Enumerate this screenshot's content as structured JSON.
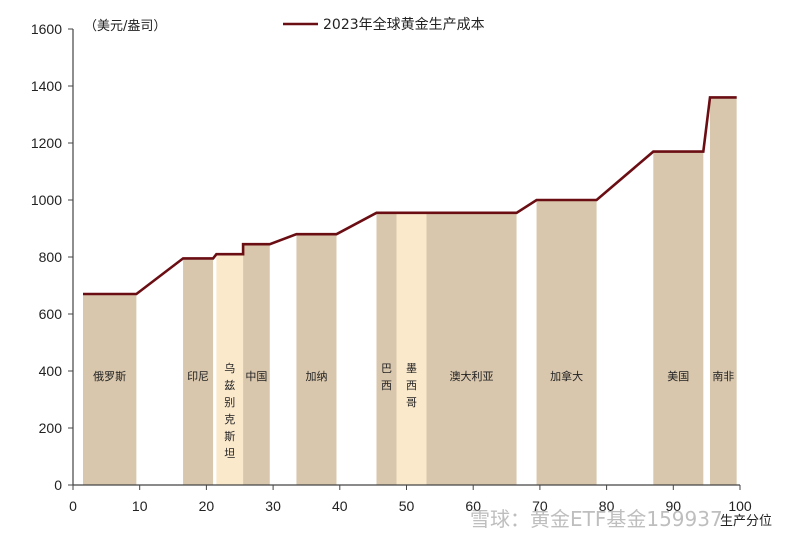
{
  "chart_data": {
    "type": "bar",
    "title": "",
    "unit_label": "（美元/盎司）",
    "legend": "2023年全球黄金生产成本",
    "xlabel": "生产分位",
    "ylabel": "",
    "xlim": [
      0,
      100
    ],
    "ylim": [
      0,
      1600
    ],
    "xticks": [
      0,
      10,
      20,
      30,
      40,
      50,
      60,
      70,
      80,
      90,
      100
    ],
    "yticks": [
      0,
      200,
      400,
      600,
      800,
      1000,
      1200,
      1400,
      1600
    ],
    "grid": false,
    "legend_position": "top-center",
    "colors": {
      "bar": "#d9c7ad",
      "bar_highlight": "#fbe9cc",
      "line": "#6b0e14",
      "axis": "#444444"
    },
    "bars": [
      {
        "label": "俄罗斯",
        "x0": 1.5,
        "x1": 9.5,
        "value": 670
      },
      {
        "label": "印尼",
        "x0": 16.5,
        "x1": 21.0,
        "value": 795
      },
      {
        "label": "乌兹别克斯坦",
        "x0": 21.5,
        "x1": 25.5,
        "value": 810,
        "highlight": true
      },
      {
        "label": "中国",
        "x0": 25.5,
        "x1": 29.5,
        "value": 845
      },
      {
        "label": "加纳",
        "x0": 33.5,
        "x1": 39.5,
        "value": 880
      },
      {
        "label": "巴西",
        "x0": 45.5,
        "x1": 48.5,
        "value": 955
      },
      {
        "label": "墨西哥",
        "x0": 48.5,
        "x1": 53.0,
        "value": 955,
        "highlight": true
      },
      {
        "label": "澳大利亚",
        "x0": 53.0,
        "x1": 66.5,
        "value": 955
      },
      {
        "label": "加拿大",
        "x0": 69.5,
        "x1": 78.5,
        "value": 1000
      },
      {
        "label": "美国",
        "x0": 87.0,
        "x1": 94.5,
        "value": 1170
      },
      {
        "label": "南非",
        "x0": 95.5,
        "x1": 99.5,
        "value": 1360
      }
    ],
    "cost_curve": [
      [
        1.5,
        670
      ],
      [
        9.5,
        670
      ],
      [
        16.5,
        795
      ],
      [
        21.0,
        795
      ],
      [
        21.5,
        810
      ],
      [
        25.5,
        810
      ],
      [
        25.5,
        845
      ],
      [
        29.5,
        845
      ],
      [
        33.5,
        880
      ],
      [
        39.5,
        880
      ],
      [
        45.5,
        955
      ],
      [
        66.5,
        955
      ],
      [
        69.5,
        1000
      ],
      [
        78.5,
        1000
      ],
      [
        87.0,
        1170
      ],
      [
        94.5,
        1170
      ],
      [
        95.5,
        1360
      ],
      [
        99.5,
        1360
      ]
    ]
  },
  "watermark": "雪球：黄金ETF基金159937"
}
